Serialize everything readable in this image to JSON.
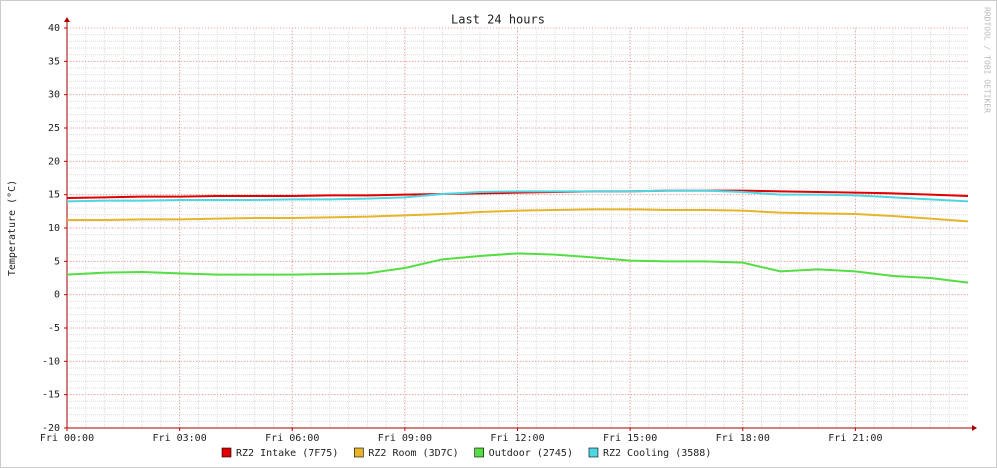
{
  "chart_data": {
    "type": "line",
    "title": "Last 24 hours",
    "y_label": "Temperature (°C)",
    "credit": "RRDTOOL / TOBI OETIKER",
    "x": [
      0,
      1,
      2,
      3,
      4,
      5,
      6,
      7,
      8,
      9,
      10,
      11,
      12,
      13,
      14,
      15,
      16,
      17,
      18,
      19,
      20,
      21,
      22,
      23,
      24
    ],
    "xlim": [
      0,
      24
    ],
    "xticks": [
      {
        "value": 0,
        "label": "Fri 00:00"
      },
      {
        "value": 3,
        "label": "Fri 03:00"
      },
      {
        "value": 6,
        "label": "Fri 06:00"
      },
      {
        "value": 9,
        "label": "Fri 09:00"
      },
      {
        "value": 12,
        "label": "Fri 12:00"
      },
      {
        "value": 15,
        "label": "Fri 15:00"
      },
      {
        "value": 18,
        "label": "Fri 18:00"
      },
      {
        "value": 21,
        "label": "Fri 21:00"
      }
    ],
    "ylim": [
      -20,
      40
    ],
    "yticks": [
      -20,
      -15,
      -10,
      -5,
      0,
      5,
      10,
      15,
      20,
      25,
      30,
      35,
      40
    ],
    "grid": true,
    "series": [
      {
        "name": "RZ2 Intake (7F75)",
        "color": "#e00000",
        "values": [
          14.5,
          14.6,
          14.7,
          14.7,
          14.8,
          14.8,
          14.8,
          14.9,
          14.9,
          15.0,
          15.1,
          15.2,
          15.3,
          15.4,
          15.5,
          15.5,
          15.6,
          15.6,
          15.6,
          15.5,
          15.4,
          15.3,
          15.2,
          15.0,
          14.8
        ]
      },
      {
        "name": "RZ2 Room (3D7C)",
        "color": "#e6b52a",
        "values": [
          11.2,
          11.2,
          11.3,
          11.3,
          11.4,
          11.5,
          11.5,
          11.6,
          11.7,
          11.9,
          12.1,
          12.4,
          12.6,
          12.7,
          12.8,
          12.8,
          12.7,
          12.7,
          12.6,
          12.3,
          12.2,
          12.1,
          11.8,
          11.4,
          11.0
        ]
      },
      {
        "name": "Outdoor (2745)",
        "color": "#55dd44",
        "values": [
          3.0,
          3.3,
          3.4,
          3.2,
          3.0,
          3.0,
          3.0,
          3.1,
          3.2,
          4.0,
          5.3,
          5.8,
          6.2,
          6.0,
          5.6,
          5.1,
          5.0,
          5.0,
          4.8,
          3.5,
          3.8,
          3.5,
          2.8,
          2.5,
          1.8
        ]
      },
      {
        "name": "RZ2 Cooling (3588)",
        "color": "#4fd6e4",
        "values": [
          14.0,
          14.1,
          14.1,
          14.2,
          14.2,
          14.2,
          14.3,
          14.3,
          14.4,
          14.6,
          15.1,
          15.4,
          15.5,
          15.5,
          15.5,
          15.5,
          15.6,
          15.6,
          15.4,
          15.0,
          15.0,
          14.9,
          14.6,
          14.3,
          14.0
        ]
      }
    ]
  }
}
